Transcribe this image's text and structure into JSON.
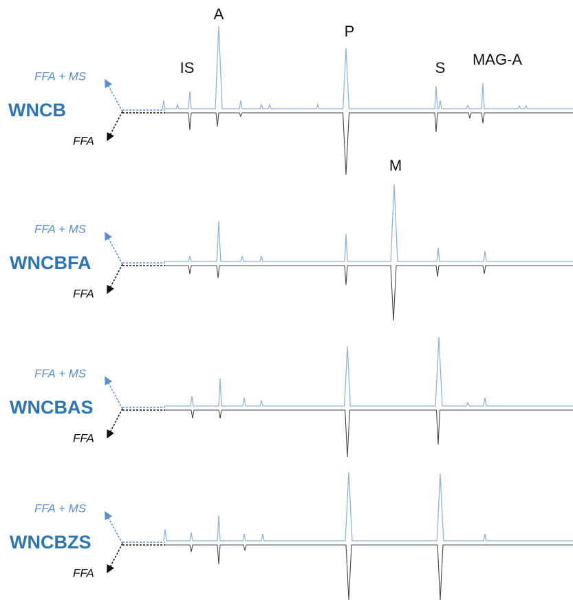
{
  "peak_labels": [
    "IS",
    "A",
    "P",
    "S",
    "MAG-A",
    "M"
  ],
  "panels": [
    {
      "sample": "WNCB",
      "upper": "FFA + MS",
      "lower": "FFA"
    },
    {
      "sample": "WNCBFA",
      "upper": "FFA + MS",
      "lower": "FFA"
    },
    {
      "sample": "WNCBAS",
      "upper": "FFA + MS",
      "lower": "FFA"
    },
    {
      "sample": "WNCBZS",
      "upper": "FFA + MS",
      "lower": "FFA"
    }
  ]
}
